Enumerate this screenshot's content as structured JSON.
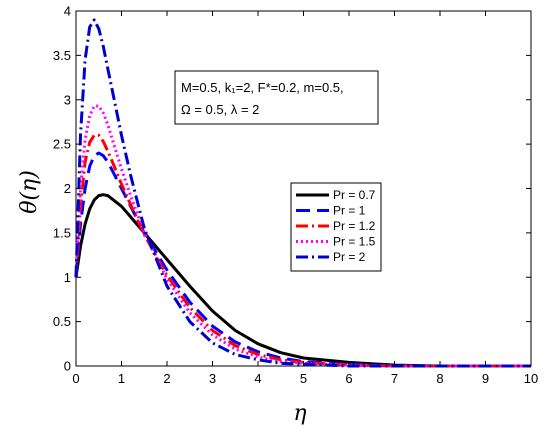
{
  "chart_data": {
    "type": "line",
    "xlabel": "η",
    "ylabel": "θ(η)",
    "xlim": [
      0,
      10
    ],
    "ylim": [
      0,
      4
    ],
    "xticks": [
      "0",
      "1",
      "2",
      "3",
      "4",
      "5",
      "6",
      "7",
      "8",
      "9",
      "10"
    ],
    "yticks": [
      "0",
      "0.5",
      "1",
      "1.5",
      "2",
      "2.5",
      "3",
      "3.5",
      "4"
    ],
    "grid": false,
    "legend_position": "right-middle",
    "annotation": {
      "line1": "M=0.5, k₁=2, F*=0.2, m=0.5,",
      "line2": "Ω = 0.5, λ = 2"
    },
    "series": [
      {
        "name": "Pr = 0.7",
        "color": "#000000",
        "dash": "solid",
        "x": [
          0,
          0.1,
          0.2,
          0.3,
          0.4,
          0.5,
          0.6,
          0.7,
          0.8,
          1.0,
          1.2,
          1.5,
          2.0,
          2.5,
          3.0,
          3.5,
          4.0,
          4.5,
          5.0,
          6.0,
          7.0,
          8.0,
          10.0
        ],
        "values": [
          1.0,
          1.35,
          1.6,
          1.77,
          1.87,
          1.92,
          1.93,
          1.92,
          1.88,
          1.8,
          1.68,
          1.5,
          1.2,
          0.9,
          0.62,
          0.4,
          0.25,
          0.15,
          0.09,
          0.04,
          0.01,
          0.0,
          0.0
        ]
      },
      {
        "name": "Pr =  1",
        "color": "#0000ff",
        "dash": "long-dash",
        "x": [
          0,
          0.1,
          0.2,
          0.3,
          0.4,
          0.5,
          0.6,
          0.7,
          0.8,
          1.0,
          1.2,
          1.5,
          2.0,
          2.5,
          3.0,
          3.5,
          4.0,
          4.5,
          5.0,
          6.0,
          7.0,
          8.0,
          10.0
        ],
        "values": [
          1.0,
          1.6,
          2.0,
          2.25,
          2.37,
          2.4,
          2.37,
          2.3,
          2.2,
          2.0,
          1.8,
          1.5,
          1.08,
          0.72,
          0.45,
          0.27,
          0.16,
          0.09,
          0.05,
          0.02,
          0.0,
          0.0,
          0.0
        ]
      },
      {
        "name": "Pr = 1.2",
        "color": "#ff0000",
        "dash": "dash-dot",
        "x": [
          0,
          0.1,
          0.2,
          0.3,
          0.4,
          0.5,
          0.6,
          0.7,
          0.8,
          1.0,
          1.2,
          1.5,
          2.0,
          2.5,
          3.0,
          3.5,
          4.0,
          4.5,
          5.0,
          6.0,
          7.0,
          8.0,
          10.0
        ],
        "values": [
          1.0,
          1.8,
          2.3,
          2.52,
          2.6,
          2.6,
          2.53,
          2.42,
          2.3,
          2.05,
          1.82,
          1.48,
          1.02,
          0.66,
          0.4,
          0.23,
          0.13,
          0.07,
          0.04,
          0.01,
          0.0,
          0.0,
          0.0
        ]
      },
      {
        "name": "Pr = 1.5",
        "color": "#ff00ff",
        "dash": "dotted",
        "x": [
          0,
          0.1,
          0.2,
          0.3,
          0.4,
          0.5,
          0.6,
          0.7,
          0.8,
          1.0,
          1.2,
          1.5,
          2.0,
          2.5,
          3.0,
          3.5,
          4.0,
          4.5,
          5.0,
          6.0,
          7.0,
          8.0,
          10.0
        ],
        "values": [
          1.0,
          2.0,
          2.55,
          2.82,
          2.93,
          2.93,
          2.85,
          2.72,
          2.55,
          2.22,
          1.92,
          1.5,
          0.98,
          0.6,
          0.35,
          0.19,
          0.1,
          0.05,
          0.03,
          0.01,
          0.0,
          0.0,
          0.0
        ]
      },
      {
        "name": "Pr =  2",
        "color": "#0000cc",
        "dash": "dash-dot",
        "x": [
          0,
          0.1,
          0.2,
          0.3,
          0.4,
          0.5,
          0.6,
          0.7,
          0.8,
          1.0,
          1.2,
          1.5,
          2.0,
          2.5,
          3.0,
          3.5,
          4.0,
          4.5,
          5.0,
          6.0,
          7.0,
          8.0,
          10.0
        ],
        "values": [
          1.0,
          2.6,
          3.45,
          3.82,
          3.9,
          3.8,
          3.6,
          3.35,
          3.1,
          2.6,
          2.15,
          1.55,
          0.9,
          0.5,
          0.26,
          0.13,
          0.07,
          0.03,
          0.02,
          0.0,
          0.0,
          0.0,
          0.0
        ]
      }
    ]
  }
}
